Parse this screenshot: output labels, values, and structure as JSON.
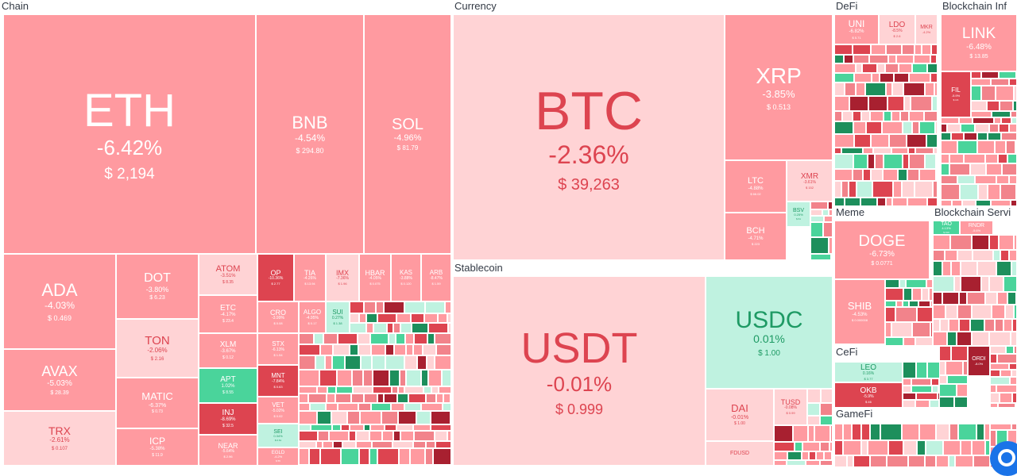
{
  "colors": {
    "strong_red": "#dd4450",
    "medium_red": "#f2838b",
    "light_red": "#ff9aa0",
    "pale_red": "#ffd3d5",
    "pale_green": "#bff2e0",
    "green": "#4ad49b",
    "dark_green": "#1d8f5c",
    "dark_red": "#a82030"
  },
  "sectors": [
    {
      "name": "Chain"
    },
    {
      "name": "Currency"
    },
    {
      "name": "Stablecoin"
    },
    {
      "name": "DeFi"
    },
    {
      "name": "Blockchain Inf"
    },
    {
      "name": "Meme"
    },
    {
      "name": "Blockchain Servi"
    },
    {
      "name": "CeFi"
    },
    {
      "name": "GameFi"
    }
  ],
  "coins": [
    {
      "symbol": "ETH",
      "change": "-6.42%",
      "price": "$ 2,194"
    },
    {
      "symbol": "BNB",
      "change": "-4.54%",
      "price": "$ 294.80"
    },
    {
      "symbol": "SOL",
      "change": "-4.96%",
      "price": "$ 81.79"
    },
    {
      "symbol": "ADA",
      "change": "-4.03%",
      "price": "$ 0.469"
    },
    {
      "symbol": "DOT",
      "change": "-3.80%",
      "price": "$ 6.23"
    },
    {
      "symbol": "ATOM",
      "change": "-3.51%",
      "price": "$ 8.35"
    },
    {
      "symbol": "OP",
      "change": "-10.36%",
      "price": "$ 2.77"
    },
    {
      "symbol": "TIA",
      "change": "-4.26%",
      "price": "$ 13.94"
    },
    {
      "symbol": "IMX",
      "change": "-7.36%",
      "price": "$ 1.96"
    },
    {
      "symbol": "HBAR",
      "change": "-4.05%",
      "price": "$ 0.075"
    },
    {
      "symbol": "KAS",
      "change": "-3.88%",
      "price": "$ 0.120"
    },
    {
      "symbol": "ARB",
      "change": "-8.47%",
      "price": "$ 1.59"
    },
    {
      "symbol": "TON",
      "change": "-2.06%",
      "price": "$ 2.16"
    },
    {
      "symbol": "ETC",
      "change": "-4.17%",
      "price": "$ 23.4"
    },
    {
      "symbol": "AVAX",
      "change": "-5.03%",
      "price": "$ 28.39"
    },
    {
      "symbol": "XLM",
      "change": "-3.67%",
      "price": "$ 0.12"
    },
    {
      "symbol": "CRO",
      "change": "-3.99%",
      "price": "$ 0.08"
    },
    {
      "symbol": "ALGO",
      "change": "-4.95%",
      "price": "$ 0.17"
    },
    {
      "symbol": "SUI",
      "change": "0.27%",
      "price": "$ 1.38"
    },
    {
      "symbol": "MATIC",
      "change": "-6.37%",
      "price": "$ 0.73"
    },
    {
      "symbol": "APT",
      "change": "1.02%",
      "price": "$ 8.55"
    },
    {
      "symbol": "STX",
      "change": "-6.13%",
      "price": "$ 1.54"
    },
    {
      "symbol": "MNT",
      "change": "-7.84%",
      "price": "$ 0.63"
    },
    {
      "symbol": "INJ",
      "change": "-8.69%",
      "price": "$ 32.5"
    },
    {
      "symbol": "VET",
      "change": "-5.02%",
      "price": "$ 0.02"
    },
    {
      "symbol": "TRX",
      "change": "-2.61%",
      "price": "$ 0.107"
    },
    {
      "symbol": "ICP",
      "change": "-5.38%",
      "price": "$ 11.9"
    },
    {
      "symbol": "NEAR",
      "change": "-5.64%",
      "price": "$ 2.96"
    },
    {
      "symbol": "SEI",
      "change": "0.34%",
      "price": "$ 0.61"
    },
    {
      "symbol": "EGLD",
      "change": "-4.2%",
      "price": "$ 55"
    },
    {
      "symbol": "BTC",
      "change": "-2.36%",
      "price": "$ 39,263"
    },
    {
      "symbol": "XRP",
      "change": "-3.85%",
      "price": "$ 0.513"
    },
    {
      "symbol": "LTC",
      "change": "-4.88%",
      "price": "$ 66.02"
    },
    {
      "symbol": "XMR",
      "change": "-3.61%",
      "price": "$ 152"
    },
    {
      "symbol": "BSV",
      "change": "0.25%",
      "price": "$ 61"
    },
    {
      "symbol": "BCH",
      "change": "-4.71%",
      "price": "$ 223"
    },
    {
      "symbol": "USDT",
      "change": "-0.01%",
      "price": "$ 0.999"
    },
    {
      "symbol": "USDC",
      "change": "0.01%",
      "price": "$ 1.00"
    },
    {
      "symbol": "DAI",
      "change": "-0.01%",
      "price": "$ 1.00"
    },
    {
      "symbol": "TUSD",
      "change": "-0.08%",
      "price": "$ 0.99"
    },
    {
      "symbol": "FDUSD",
      "change": "",
      "price": ""
    },
    {
      "symbol": "UNI",
      "change": "-6.82%",
      "price": "$ 5.71"
    },
    {
      "symbol": "LDO",
      "change": "-8.5%",
      "price": "$ 2.6"
    },
    {
      "symbol": "MKR",
      "change": "-4.2%",
      "price": ""
    },
    {
      "symbol": "LINK",
      "change": "-6.48%",
      "price": "$ 13.85"
    },
    {
      "symbol": "FIL",
      "change": "-5.9%",
      "price": "$ 4.6"
    },
    {
      "symbol": "DOGE",
      "change": "-6.73%",
      "price": "$ 0.0771"
    },
    {
      "symbol": "SHIB",
      "change": "-4.53%",
      "price": "$ 0.000008"
    },
    {
      "symbol": "TAO",
      "change": "4.13%",
      "price": "$ 310"
    },
    {
      "symbol": "RNDR",
      "change": "-5.6%",
      "price": ""
    },
    {
      "symbol": "LEO",
      "change": "0.16%",
      "price": "$ 3.77"
    },
    {
      "symbol": "OKB",
      "change": "-5.9%",
      "price": "$ 46"
    },
    {
      "symbol": "ORDI",
      "change": "-8.0%",
      "price": ""
    }
  ]
}
